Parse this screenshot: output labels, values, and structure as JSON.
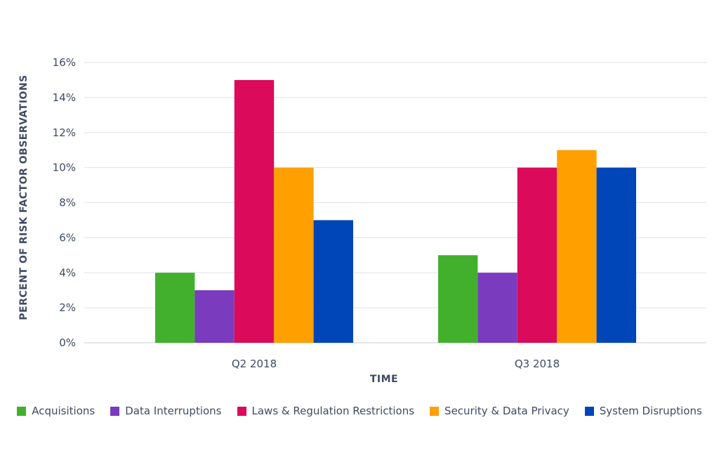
{
  "chart_data": {
    "type": "bar",
    "categories": [
      "Q2 2018",
      "Q3 2018"
    ],
    "series": [
      {
        "name": "Acquisitions",
        "values": [
          4,
          5
        ],
        "color": "#42b02d"
      },
      {
        "name": "Data Interruptions",
        "values": [
          3,
          4
        ],
        "color": "#7a3bbf"
      },
      {
        "name": "Laws & Regulation Restrictions",
        "values": [
          15,
          10
        ],
        "color": "#dc0a5a"
      },
      {
        "name": "Security & Data Privacy",
        "values": [
          10,
          11
        ],
        "color": "#ffa000"
      },
      {
        "name": "System Disruptions",
        "values": [
          7,
          10
        ],
        "color": "#0046b8"
      }
    ],
    "xlabel": "TIME",
    "ylabel": "PERCENT OF RISK FACTOR OBSERVATIONS",
    "ylim": [
      0,
      16
    ],
    "yticks": [
      "0%",
      "2%",
      "4%",
      "6%",
      "8%",
      "10%",
      "12%",
      "14%",
      "16%"
    ],
    "ytick_values": [
      0,
      2,
      4,
      6,
      8,
      10,
      12,
      14,
      16
    ],
    "grid": true,
    "legend_position": "bottom"
  }
}
